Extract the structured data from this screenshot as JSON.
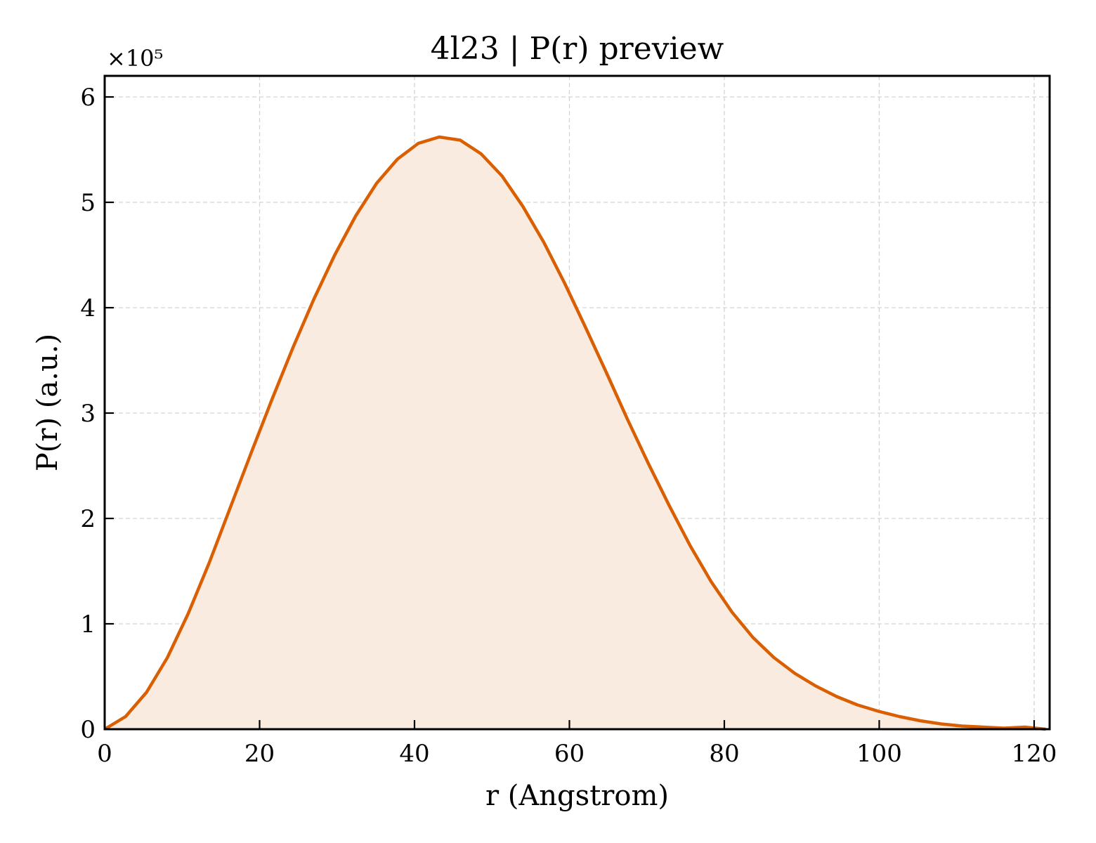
{
  "chart_data": {
    "type": "area",
    "title": "4l23 | P(r) preview",
    "xlabel": "r (Angstrom)",
    "ylabel": "P(r) (a.u.)",
    "y_multiplier_label": "×10⁵",
    "xlim": [
      0,
      122
    ],
    "ylim": [
      0,
      6.2
    ],
    "x_ticks": [
      0,
      20,
      40,
      60,
      80,
      100,
      120
    ],
    "y_ticks": [
      0,
      1,
      2,
      3,
      4,
      5,
      6
    ],
    "grid": true,
    "line_color": "#d95f02",
    "fill_color": "#f9ebe0",
    "series": [
      {
        "x": [
          0,
          2.7,
          5.4,
          8.1,
          10.8,
          13.5,
          16.2,
          18.9,
          21.6,
          24.3,
          27.0,
          29.7,
          32.4,
          35.1,
          37.8,
          40.5,
          43.2,
          45.9,
          48.6,
          51.3,
          54.0,
          56.7,
          59.4,
          62.1,
          64.8,
          67.5,
          70.2,
          72.9,
          75.6,
          78.3,
          81.0,
          83.7,
          86.4,
          89.1,
          91.8,
          94.5,
          97.2,
          99.9,
          102.6,
          105.3,
          108.0,
          110.7,
          113.4,
          116.1,
          118.8,
          121.5
        ],
        "y": [
          0.0,
          0.12,
          0.35,
          0.68,
          1.1,
          1.58,
          2.1,
          2.62,
          3.13,
          3.62,
          4.08,
          4.5,
          4.87,
          5.18,
          5.41,
          5.56,
          5.62,
          5.59,
          5.46,
          5.25,
          4.96,
          4.62,
          4.23,
          3.81,
          3.38,
          2.94,
          2.52,
          2.12,
          1.74,
          1.4,
          1.11,
          0.87,
          0.68,
          0.53,
          0.41,
          0.31,
          0.23,
          0.17,
          0.12,
          0.08,
          0.05,
          0.03,
          0.02,
          0.01,
          0.02,
          0.0
        ]
      }
    ]
  }
}
